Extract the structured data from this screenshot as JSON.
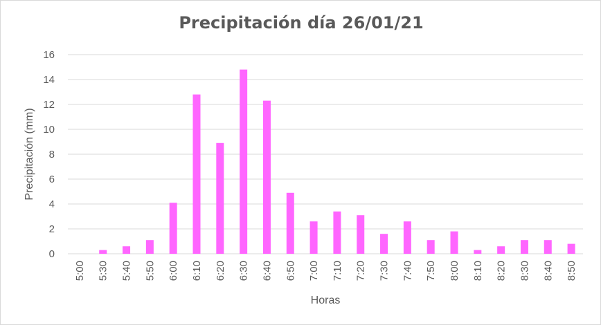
{
  "chart_data": {
    "type": "bar",
    "title": "Precipitación día 26/01/21",
    "xlabel": "Horas",
    "ylabel": "Precipitación (mm)",
    "ylim": [
      0,
      16
    ],
    "ytick_step": 2,
    "grid": true,
    "bar_color": "#ff66ff",
    "categories": [
      "5:00",
      "5:30",
      "5:40",
      "5:50",
      "6:00",
      "6:10",
      "6:20",
      "6:30",
      "6:40",
      "6:50",
      "7:00",
      "7:10",
      "7:20",
      "7:30",
      "7:40",
      "7:50",
      "8:00",
      "8:10",
      "8:20",
      "8:30",
      "8:40",
      "8:50"
    ],
    "values": [
      0,
      0.3,
      0.6,
      1.1,
      4.1,
      12.8,
      8.9,
      14.8,
      12.3,
      4.9,
      2.6,
      3.4,
      3.1,
      1.6,
      2.6,
      1.1,
      1.8,
      0.3,
      0.6,
      1.1,
      1.1,
      0.8
    ]
  }
}
